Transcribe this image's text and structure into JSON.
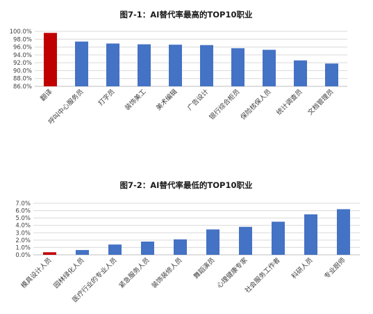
{
  "colors": {
    "default_bar": "#4472C4",
    "highlight_bar": "#C00000"
  },
  "chart_data": [
    {
      "type": "bar",
      "title": "图7-1：AI替代率最高的TOP10职业",
      "categories": [
        "翻译",
        "呼叫中心服务员",
        "打字员",
        "装饰美工",
        "美术编辑",
        "广告设计",
        "银行综合柜员",
        "保险核保人员",
        "统计调查员",
        "文档管理员"
      ],
      "values": [
        99.6,
        97.4,
        96.9,
        96.7,
        96.6,
        96.5,
        95.7,
        95.3,
        92.6,
        91.8
      ],
      "highlight_index": 0,
      "ylim": [
        86,
        100
      ],
      "yticks": [
        "86.0%",
        "88.0%",
        "90.0%",
        "92.0%",
        "94.0%",
        "96.0%",
        "98.0%",
        "100.0%"
      ],
      "xlabel": "",
      "ylabel": "",
      "grid": true,
      "legend": "none"
    },
    {
      "type": "bar",
      "title": "图7-2：AI替代率最低的TOP10职业",
      "categories": [
        "模具设计人员",
        "园林绿化人员",
        "医疗行业的专业人员",
        "紧急服务人员",
        "装饰装修人员",
        "舞蹈演员",
        "心理健康专家",
        "社会服务工作者",
        "科研人员",
        "专业厨师"
      ],
      "values": [
        0.35,
        0.65,
        1.4,
        1.8,
        2.1,
        3.45,
        3.8,
        4.5,
        5.5,
        6.2
      ],
      "highlight_index": 0,
      "ylim": [
        0,
        7
      ],
      "yticks": [
        "0.0%",
        "1.0%",
        "2.0%",
        "3.0%",
        "4.0%",
        "5.0%",
        "6.0%",
        "7.0%"
      ],
      "xlabel": "",
      "ylabel": "",
      "grid": true,
      "legend": "none"
    }
  ]
}
